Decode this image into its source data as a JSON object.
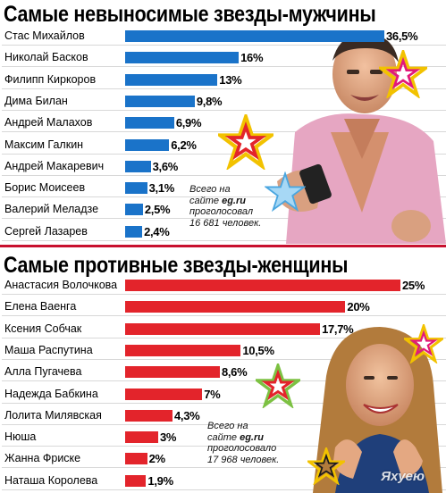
{
  "chart_data": [
    {
      "type": "bar",
      "orientation": "horizontal",
      "title": "Самые невыносимые звезды-мужчины",
      "categories": [
        "Стас Михайлов",
        "Николай Басков",
        "Филипп Киркоров",
        "Дима Билан",
        "Андрей Малахов",
        "Максим Галкин",
        "Андрей Макаревич",
        "Борис Моисеев",
        "Валерий Меладзе",
        "Сергей Лазарев"
      ],
      "values": [
        36.5,
        16,
        13,
        9.8,
        6.9,
        6.2,
        3.6,
        3.1,
        2.5,
        2.4
      ],
      "labels": [
        "36,5%",
        "16%",
        "13%",
        "9,8%",
        "6,9%",
        "6,2%",
        "3,6%",
        "3,1%",
        "2,5%",
        "2,4%"
      ],
      "bar_color": "#1a73c9",
      "note": {
        "line1": "Всего на",
        "line2_prefix": "сайте ",
        "line2_site": "eg.ru",
        "line3": "проголосовал",
        "line4": "16 681 человек."
      }
    },
    {
      "type": "bar",
      "orientation": "horizontal",
      "title": "Самые противные звезды-женщины",
      "categories": [
        "Анастасия Волочкова",
        "Елена Ваенга",
        "Ксения Собчак",
        "Маша Распутина",
        "Алла Пугачева",
        "Надежда Бабкина",
        "Лолита Милявская",
        "Нюша",
        "Жанна Фриске",
        "Наташа Королева"
      ],
      "values": [
        25,
        20,
        17.7,
        10.5,
        8.6,
        7,
        4.3,
        3,
        2,
        1.9
      ],
      "labels": [
        "25%",
        "20%",
        "17,7%",
        "10,5%",
        "8,6%",
        "7%",
        "4,3%",
        "3%",
        "2%",
        "1,9%"
      ],
      "bar_color": "#e3242b",
      "note": {
        "line1": "Всего на",
        "line2_prefix": "сайте ",
        "line2_site": "eg.ru",
        "line3": "проголосовало",
        "line4": "17 968 человек."
      }
    }
  ],
  "watermark": "Яхуею"
}
